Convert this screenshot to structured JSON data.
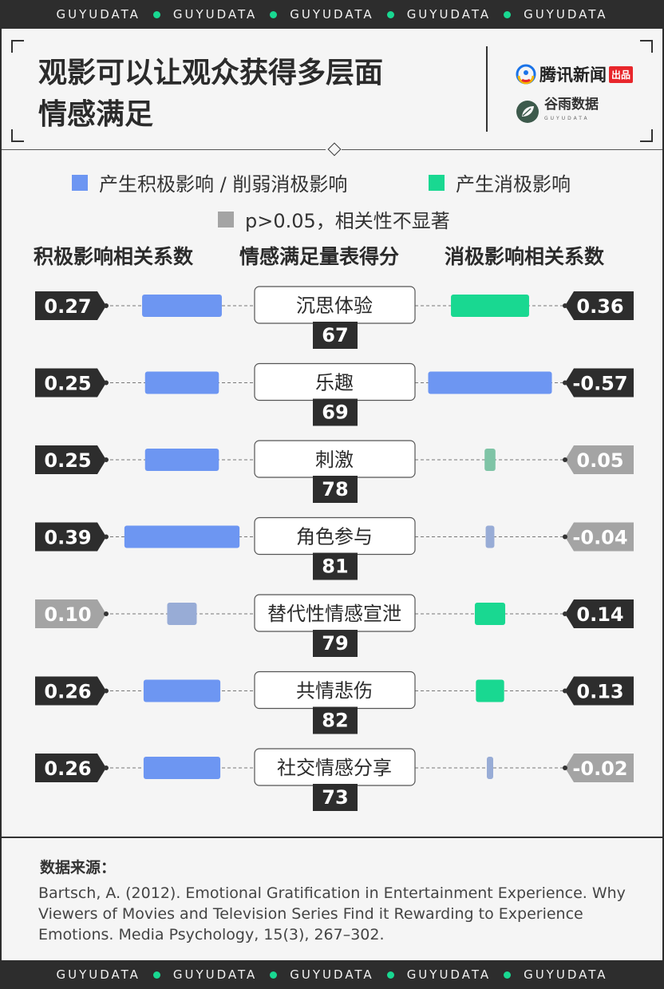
{
  "brand_band": "GUYUDATA",
  "title_line1": "观影可以让观众获得多层面",
  "title_line2": "情感满足",
  "logos": {
    "tencent": "腾讯新闻",
    "tencent_tag": "出品",
    "guyu": "谷雨数据",
    "guyu_sub": "GUYUDATA"
  },
  "legend": {
    "positive": "产生积极影响 / 削弱消极影响",
    "negative": "产生消极影响",
    "ns": "p>0.05，相关性不显著"
  },
  "colors": {
    "blue": "#6d96f2",
    "green": "#19d891",
    "blue_muted": "#98acd6",
    "green_muted": "#7fc4a6",
    "grey": "#a4a4a4",
    "dark": "#2d2d2d"
  },
  "column_headers": {
    "left": "积极影响相关系数",
    "center": "情感满足量表得分",
    "right": "消极影响相关系数"
  },
  "chart_data": {
    "type": "bar",
    "categories": [
      "沉思体验",
      "乐趣",
      "刺激",
      "角色参与",
      "替代性情感宣泄",
      "共情悲伤",
      "社交情感分享"
    ],
    "scores": [
      67,
      69,
      78,
      81,
      79,
      82,
      73
    ],
    "positive": [
      {
        "label": "0.27",
        "value": 0.27,
        "significant": true
      },
      {
        "label": "0.25",
        "value": 0.25,
        "significant": true
      },
      {
        "label": "0.25",
        "value": 0.25,
        "significant": true
      },
      {
        "label": "0.39",
        "value": 0.39,
        "significant": true
      },
      {
        "label": "0.10",
        "value": 0.1,
        "significant": false
      },
      {
        "label": "0.26",
        "value": 0.26,
        "significant": true
      },
      {
        "label": "0.26",
        "value": 0.26,
        "significant": true
      }
    ],
    "negative": [
      {
        "label": "0.36",
        "value": 0.36,
        "significant": true,
        "effect": "negative"
      },
      {
        "label": "-0.57",
        "value": -0.57,
        "significant": true,
        "effect": "positive"
      },
      {
        "label": "0.05",
        "value": 0.05,
        "significant": false,
        "effect": "negative"
      },
      {
        "label": "-0.04",
        "value": -0.04,
        "significant": false,
        "effect": "positive"
      },
      {
        "label": "0.14",
        "value": 0.14,
        "significant": true,
        "effect": "negative"
      },
      {
        "label": "0.13",
        "value": 0.13,
        "significant": true,
        "effect": "negative"
      },
      {
        "label": "-0.02",
        "value": -0.02,
        "significant": false,
        "effect": "positive"
      }
    ]
  },
  "source": {
    "title": "数据来源：",
    "text": "Bartsch, A. (2012). Emotional Gratification in Entertainment Experience. Why Viewers of Movies and Television Series Find it Rewarding to Experience Emotions. Media Psychology, 15(3), 267–302."
  }
}
